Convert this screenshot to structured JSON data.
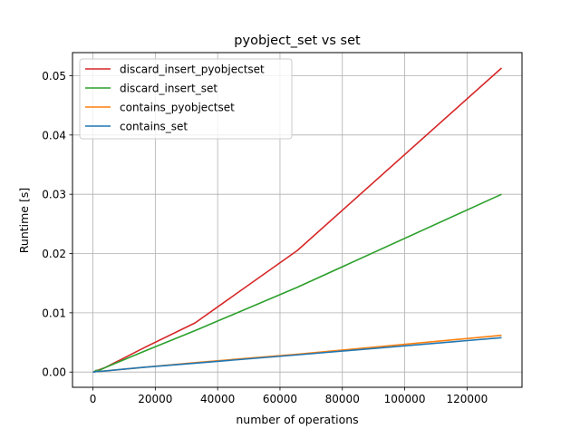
{
  "chart_data": {
    "type": "line",
    "title": "pyobject_set vs set",
    "xlabel": "number of operations",
    "ylabel": "Runtime [s]",
    "xlim": [
      -6554,
      137626
    ],
    "ylim": [
      -0.00257,
      0.0539
    ],
    "xticks": [
      0,
      20000,
      40000,
      60000,
      80000,
      100000,
      120000
    ],
    "xtick_labels": [
      "0",
      "20000",
      "40000",
      "60000",
      "80000",
      "100000",
      "120000"
    ],
    "yticks": [
      0.0,
      0.01,
      0.02,
      0.03,
      0.04,
      0.05
    ],
    "ytick_labels": [
      "0.00",
      "0.01",
      "0.02",
      "0.03",
      "0.04",
      "0.05"
    ],
    "grid": true,
    "legend_position": "upper-left",
    "series": [
      {
        "name": "discard_insert_pyobjectset",
        "color": "#d62728",
        "x": [
          1,
          2,
          4,
          8,
          16,
          32,
          64,
          128,
          256,
          512,
          1024,
          2048,
          4096,
          8192,
          16384,
          32768,
          65536,
          131072
        ],
        "y": [
          0.0,
          0.0,
          0.0,
          0.0,
          0.0,
          0.0,
          0.0,
          0.0,
          0.0,
          0.0001,
          0.0002,
          0.0004,
          0.0008,
          0.0019,
          0.0041,
          0.0083,
          0.0205,
          0.0513
        ]
      },
      {
        "name": "discard_insert_set",
        "color": "#2ca02c",
        "x": [
          1,
          2,
          4,
          8,
          16,
          32,
          64,
          128,
          256,
          512,
          1024,
          2048,
          4096,
          8192,
          16384,
          32768,
          65536,
          131072
        ],
        "y": [
          0.0,
          0.0,
          0.0,
          0.0,
          0.0,
          0.0,
          0.0,
          0.0,
          0.0,
          0.0001,
          0.0003,
          0.0003,
          0.0008,
          0.0017,
          0.0035,
          0.007,
          0.0143,
          0.03
        ]
      },
      {
        "name": "contains_pyobjectset",
        "color": "#ff7f0e",
        "x": [
          1,
          2,
          4,
          8,
          16,
          32,
          64,
          128,
          256,
          512,
          1024,
          2048,
          4096,
          8192,
          16384,
          32768,
          65536,
          131072
        ],
        "y": [
          0.0,
          0.0,
          0.0,
          0.0,
          0.0,
          0.0,
          0.0,
          0.0,
          0.0,
          0.0,
          0.0001,
          0.0001,
          0.0002,
          0.0004,
          0.0008,
          0.0016,
          0.003,
          0.0062
        ]
      },
      {
        "name": "contains_set",
        "color": "#1f77b4",
        "x": [
          1,
          2,
          4,
          8,
          16,
          32,
          64,
          128,
          256,
          512,
          1024,
          2048,
          4096,
          8192,
          16384,
          32768,
          65536,
          131072
        ],
        "y": [
          0.0,
          0.0,
          0.0,
          0.0,
          0.0,
          0.0,
          0.0,
          0.0,
          0.0,
          0.0,
          0.0001,
          0.0001,
          0.0002,
          0.0004,
          0.0008,
          0.0015,
          0.0029,
          0.0058
        ]
      }
    ]
  }
}
